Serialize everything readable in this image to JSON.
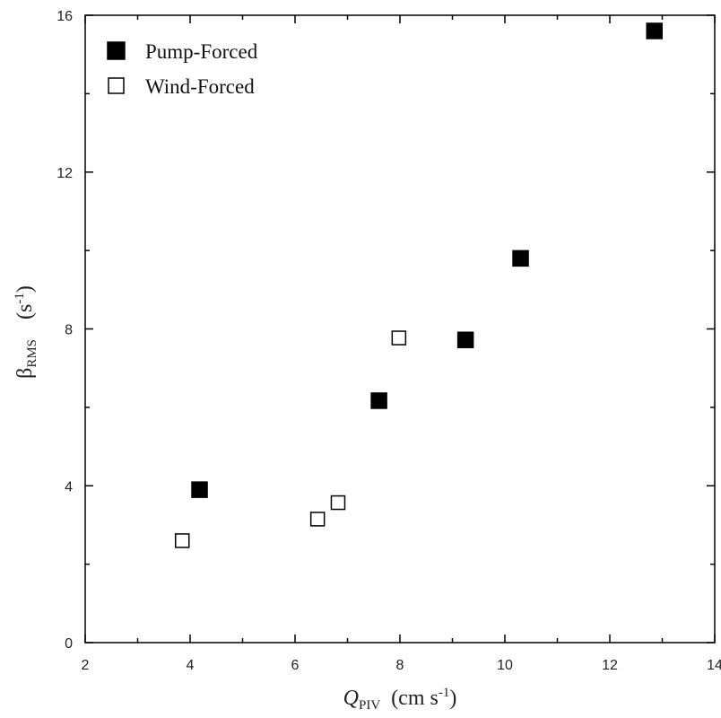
{
  "chart_data": {
    "type": "scatter",
    "xlabel": {
      "main": "Q",
      "sub": "PIV",
      "units": "(cm s",
      "units_sup": "-1",
      "units_close": ")"
    },
    "ylabel": {
      "main": "β",
      "sub": "RMS",
      "units": "(s",
      "units_sup": "-1",
      "units_close": ")"
    },
    "xlim": [
      2,
      14
    ],
    "ylim": [
      0,
      16
    ],
    "x_ticks": [
      2,
      4,
      6,
      8,
      10,
      12,
      14
    ],
    "y_ticks": [
      0,
      4,
      8,
      12,
      16
    ],
    "grid": false,
    "legend_position": "top-left",
    "series": [
      {
        "name": "Pump-Forced",
        "marker": "filled-square",
        "color": "#000000",
        "points": [
          {
            "x": 4.18,
            "y": 3.9
          },
          {
            "x": 7.6,
            "y": 6.17
          },
          {
            "x": 9.25,
            "y": 7.72
          },
          {
            "x": 10.3,
            "y": 9.8
          },
          {
            "x": 12.85,
            "y": 15.6
          }
        ]
      },
      {
        "name": "Wind-Forced",
        "marker": "open-square",
        "color": "#000000",
        "points": [
          {
            "x": 3.85,
            "y": 2.6
          },
          {
            "x": 6.43,
            "y": 3.15
          },
          {
            "x": 6.82,
            "y": 3.57
          },
          {
            "x": 7.98,
            "y": 7.77
          }
        ]
      }
    ]
  }
}
